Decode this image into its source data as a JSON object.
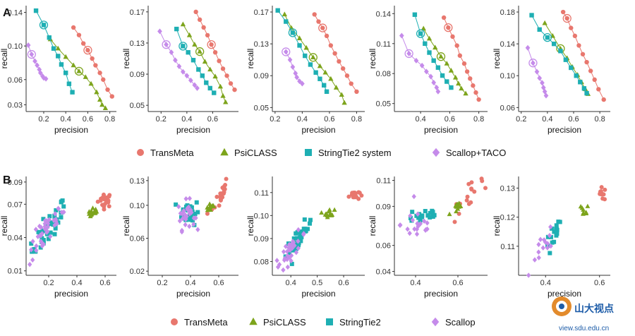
{
  "colors": {
    "TransMeta": "#E8776E",
    "PsiCLASS": "#7DA41C",
    "StringTie": "#1EAFB3",
    "Scallop": "#C58BEA"
  },
  "panels": {
    "A": "A",
    "B": "B"
  },
  "legendA": [
    "TransMeta",
    "PsiCLASS",
    "StringTie2 system",
    "Scallop+TACO"
  ],
  "legendB": [
    "TransMeta",
    "PsiCLASS",
    "StringTie2",
    "Scallop"
  ],
  "watermark": {
    "name": "山大视点",
    "url": "view.sdu.edu.cn"
  },
  "chart_data": [
    {
      "type": "line",
      "row": "A",
      "xlabel": "precision",
      "ylabel": "recall",
      "xticks": [
        "0.2",
        "0.4",
        "0.6",
        "0.8"
      ],
      "xtickvals": [
        0.2,
        0.4,
        0.6,
        0.8
      ],
      "yticks": [
        "0.03",
        "0.06",
        "0.10",
        "0.14"
      ],
      "ytickvals": [
        0.03,
        0.06,
        0.1,
        0.14
      ],
      "xlim": [
        0.04,
        0.86
      ],
      "ylim": [
        0.022,
        0.148
      ],
      "series": [
        {
          "name": "TransMeta",
          "x": [
            0.47,
            0.52,
            0.56,
            0.6,
            0.64,
            0.67,
            0.71,
            0.74,
            0.78,
            0.82
          ],
          "y": [
            0.122,
            0.113,
            0.103,
            0.095,
            0.085,
            0.077,
            0.068,
            0.06,
            0.048,
            0.04
          ],
          "circled": [
            3
          ]
        },
        {
          "name": "PsiCLASS",
          "x": [
            0.26,
            0.33,
            0.4,
            0.47,
            0.52,
            0.58,
            0.63,
            0.68,
            0.71,
            0.73,
            0.76
          ],
          "y": [
            0.108,
            0.097,
            0.087,
            0.077,
            0.07,
            0.063,
            0.055,
            0.045,
            0.036,
            0.03,
            0.026
          ],
          "circled": [
            4
          ]
        },
        {
          "name": "StringTie",
          "x": [
            0.13,
            0.2,
            0.25,
            0.29,
            0.33,
            0.36,
            0.4,
            0.43,
            0.46
          ],
          "y": [
            0.142,
            0.125,
            0.11,
            0.097,
            0.088,
            0.078,
            0.068,
            0.055,
            0.045
          ],
          "circled": [
            1
          ]
        },
        {
          "name": "Scallop",
          "x": [
            0.06,
            0.09,
            0.12,
            0.14,
            0.16,
            0.17,
            0.19,
            0.2,
            0.22
          ],
          "y": [
            0.101,
            0.09,
            0.082,
            0.077,
            0.072,
            0.068,
            0.064,
            0.062,
            0.061
          ],
          "circled": [
            1
          ]
        }
      ]
    },
    {
      "type": "line",
      "row": "A",
      "xlabel": "precision",
      "ylabel": "recall",
      "xticks": [
        "0.2",
        "0.4",
        "0.6"
      ],
      "xtickvals": [
        0.2,
        0.4,
        0.6
      ],
      "yticks": [
        "0.05",
        "0.09",
        "0.13",
        "0.17"
      ],
      "ytickvals": [
        0.05,
        0.09,
        0.13,
        0.17
      ],
      "xlim": [
        0.1,
        0.8
      ],
      "ylim": [
        0.042,
        0.178
      ],
      "series": [
        {
          "name": "TransMeta",
          "x": [
            0.47,
            0.5,
            0.53,
            0.56,
            0.59,
            0.62,
            0.65,
            0.68,
            0.71,
            0.74,
            0.77
          ],
          "y": [
            0.17,
            0.16,
            0.15,
            0.14,
            0.128,
            0.118,
            0.107,
            0.097,
            0.088,
            0.078,
            0.07
          ],
          "circled": [
            4
          ]
        },
        {
          "name": "PsiCLASS",
          "x": [
            0.37,
            0.42,
            0.46,
            0.5,
            0.54,
            0.58,
            0.62,
            0.66,
            0.68,
            0.7
          ],
          "y": [
            0.154,
            0.14,
            0.128,
            0.119,
            0.106,
            0.096,
            0.087,
            0.074,
            0.062,
            0.054
          ],
          "circled": [
            3
          ]
        },
        {
          "name": "StringTie",
          "x": [
            0.32,
            0.37,
            0.41,
            0.45,
            0.49,
            0.52,
            0.55,
            0.58,
            0.61
          ],
          "y": [
            0.148,
            0.126,
            0.118,
            0.108,
            0.096,
            0.088,
            0.079,
            0.072,
            0.066
          ],
          "circled": [
            1
          ]
        },
        {
          "name": "Scallop",
          "x": [
            0.19,
            0.24,
            0.28,
            0.31,
            0.34,
            0.37,
            0.4,
            0.43,
            0.46,
            0.48
          ],
          "y": [
            0.145,
            0.128,
            0.118,
            0.108,
            0.1,
            0.093,
            0.088,
            0.082,
            0.076,
            0.072
          ],
          "circled": [
            1
          ]
        }
      ]
    },
    {
      "type": "line",
      "row": "A",
      "xlabel": "precision",
      "ylabel": "recall",
      "xticks": [
        "0.2",
        "0.4",
        "0.6",
        "0.8"
      ],
      "xtickvals": [
        0.2,
        0.4,
        0.6,
        0.8
      ],
      "yticks": [
        "0.05",
        "0.09",
        "0.13",
        "0.17"
      ],
      "ytickvals": [
        0.05,
        0.09,
        0.13,
        0.17
      ],
      "xlim": [
        0.18,
        0.86
      ],
      "ylim": [
        0.045,
        0.178
      ],
      "series": [
        {
          "name": "TransMeta",
          "x": [
            0.49,
            0.52,
            0.55,
            0.58,
            0.61,
            0.64,
            0.67,
            0.7,
            0.73,
            0.76,
            0.8
          ],
          "y": [
            0.167,
            0.158,
            0.15,
            0.14,
            0.128,
            0.118,
            0.108,
            0.099,
            0.09,
            0.08,
            0.07
          ],
          "circled": [
            2
          ]
        },
        {
          "name": "PsiCLASS",
          "x": [
            0.27,
            0.32,
            0.38,
            0.43,
            0.48,
            0.53,
            0.57,
            0.61,
            0.65,
            0.69,
            0.71
          ],
          "y": [
            0.167,
            0.15,
            0.137,
            0.125,
            0.113,
            0.102,
            0.094,
            0.086,
            0.075,
            0.066,
            0.056
          ],
          "circled": [
            4
          ]
        },
        {
          "name": "StringTie",
          "x": [
            0.22,
            0.28,
            0.33,
            0.38,
            0.42,
            0.46,
            0.5,
            0.53,
            0.56,
            0.58
          ],
          "y": [
            0.172,
            0.158,
            0.144,
            0.128,
            0.115,
            0.104,
            0.094,
            0.086,
            0.078,
            0.07
          ],
          "circled": [
            2
          ]
        },
        {
          "name": "Scallop",
          "x": [
            0.28,
            0.31,
            0.33,
            0.35,
            0.36,
            0.38,
            0.4
          ],
          "y": [
            0.12,
            0.11,
            0.101,
            0.093,
            0.088,
            0.083,
            0.08
          ],
          "circled": [
            0
          ]
        }
      ]
    },
    {
      "type": "line",
      "row": "A",
      "xlabel": "precision",
      "ylabel": "recall",
      "xticks": [
        "0.4",
        "0.6",
        "0.8"
      ],
      "xtickvals": [
        0.4,
        0.6,
        0.8
      ],
      "yticks": [
        "0.05",
        "0.08",
        "0.11",
        "0.14"
      ],
      "ytickvals": [
        0.05,
        0.08,
        0.11,
        0.14
      ],
      "xlim": [
        0.22,
        0.86
      ],
      "ylim": [
        0.042,
        0.148
      ],
      "series": [
        {
          "name": "TransMeta",
          "x": [
            0.56,
            0.59,
            0.62,
            0.65,
            0.67,
            0.7,
            0.72,
            0.74,
            0.76,
            0.78,
            0.8
          ],
          "y": [
            0.136,
            0.126,
            0.117,
            0.108,
            0.098,
            0.09,
            0.082,
            0.075,
            0.068,
            0.061,
            0.054
          ],
          "circled": [
            1
          ]
        },
        {
          "name": "PsiCLASS",
          "x": [
            0.42,
            0.46,
            0.5,
            0.54,
            0.58,
            0.61,
            0.64,
            0.66,
            0.68,
            0.71
          ],
          "y": [
            0.125,
            0.115,
            0.106,
            0.097,
            0.09,
            0.083,
            0.076,
            0.07,
            0.065,
            0.06
          ],
          "circled": [
            3
          ]
        },
        {
          "name": "StringTie",
          "x": [
            0.36,
            0.4,
            0.43,
            0.46,
            0.49,
            0.52,
            0.55,
            0.58,
            0.61
          ],
          "y": [
            0.139,
            0.12,
            0.11,
            0.101,
            0.093,
            0.086,
            0.078,
            0.072,
            0.066
          ],
          "circled": [
            1
          ]
        },
        {
          "name": "Scallop",
          "x": [
            0.27,
            0.32,
            0.37,
            0.41,
            0.44,
            0.47,
            0.49,
            0.51,
            0.52
          ],
          "y": [
            0.118,
            0.1,
            0.093,
            0.088,
            0.082,
            0.077,
            0.071,
            0.066,
            0.062
          ],
          "circled": [
            1
          ]
        }
      ]
    },
    {
      "type": "line",
      "row": "A",
      "xlabel": "precision",
      "ylabel": "recall",
      "xticks": [
        "0.2",
        "0.4",
        "0.6",
        "0.8"
      ],
      "xtickvals": [
        0.2,
        0.4,
        0.6,
        0.8
      ],
      "yticks": [
        "0.06",
        "0.10",
        "0.14",
        "0.18"
      ],
      "ytickvals": [
        0.06,
        0.1,
        0.14,
        0.18
      ],
      "xlim": [
        0.18,
        0.88
      ],
      "ylim": [
        0.055,
        0.188
      ],
      "series": [
        {
          "name": "TransMeta",
          "x": [
            0.52,
            0.55,
            0.58,
            0.61,
            0.64,
            0.67,
            0.7,
            0.73,
            0.76,
            0.79,
            0.83
          ],
          "y": [
            0.18,
            0.172,
            0.16,
            0.15,
            0.138,
            0.127,
            0.117,
            0.106,
            0.095,
            0.083,
            0.07
          ],
          "circled": [
            1
          ]
        },
        {
          "name": "PsiCLASS",
          "x": [
            0.38,
            0.44,
            0.5,
            0.55,
            0.59,
            0.63,
            0.66,
            0.69,
            0.71
          ],
          "y": [
            0.166,
            0.15,
            0.134,
            0.122,
            0.111,
            0.101,
            0.092,
            0.083,
            0.077
          ],
          "circled": [
            2
          ]
        },
        {
          "name": "StringTie",
          "x": [
            0.28,
            0.34,
            0.4,
            0.45,
            0.5,
            0.54,
            0.58,
            0.62,
            0.65,
            0.68,
            0.7
          ],
          "y": [
            0.176,
            0.158,
            0.148,
            0.14,
            0.131,
            0.12,
            0.11,
            0.1,
            0.092,
            0.084,
            0.078
          ],
          "circled": [
            2
          ]
        },
        {
          "name": "Scallop",
          "x": [
            0.25,
            0.29,
            0.32,
            0.34,
            0.36,
            0.37,
            0.38,
            0.39
          ],
          "y": [
            0.135,
            0.116,
            0.105,
            0.097,
            0.091,
            0.085,
            0.08,
            0.075
          ],
          "circled": [
            1
          ]
        }
      ]
    },
    {
      "type": "scatter",
      "row": "B",
      "xlabel": "precision",
      "ylabel": "recall",
      "xticks": [
        "0.2",
        "0.4",
        "0.6"
      ],
      "xtickvals": [
        0.2,
        0.4,
        0.6
      ],
      "yticks": [
        "0.01",
        "0.04",
        "0.07",
        "0.09"
      ],
      "ytickvals": [
        0.01,
        0.04,
        0.07,
        0.09
      ],
      "xlim": [
        0.04,
        0.68
      ],
      "ylim": [
        0.006,
        0.095
      ],
      "clusters": [
        {
          "name": "TransMeta",
          "cx": 0.6,
          "cy": 0.074,
          "sx": 0.025,
          "sy": 0.006,
          "n": 22,
          "trend": 0
        },
        {
          "name": "PsiCLASS",
          "cx": 0.52,
          "cy": 0.062,
          "sx": 0.02,
          "sy": 0.004,
          "n": 14,
          "trend": 0
        },
        {
          "name": "StringTie",
          "cx": 0.2,
          "cy": 0.048,
          "sx": 0.06,
          "sy": 0.011,
          "n": 40,
          "trend": 0.17
        },
        {
          "name": "Scallop",
          "cx": 0.18,
          "cy": 0.045,
          "sx": 0.06,
          "sy": 0.012,
          "n": 40,
          "trend": 0.17
        }
      ]
    },
    {
      "type": "scatter",
      "row": "B",
      "xlabel": "precision",
      "ylabel": "recall",
      "xticks": [
        "0.2",
        "0.4",
        "0.6"
      ],
      "xtickvals": [
        0.2,
        0.4,
        0.6
      ],
      "yticks": [
        "0.02",
        "0.06",
        "0.10",
        "0.13"
      ],
      "ytickvals": [
        0.02,
        0.06,
        0.1,
        0.13
      ],
      "xlim": [
        0.1,
        0.74
      ],
      "ylim": [
        0.015,
        0.135
      ],
      "clusters": [
        {
          "name": "TransMeta",
          "cx": 0.6,
          "cy": 0.108,
          "sx": 0.035,
          "sy": 0.01,
          "n": 22,
          "trend": 0.3
        },
        {
          "name": "PsiCLASS",
          "cx": 0.54,
          "cy": 0.098,
          "sx": 0.02,
          "sy": 0.006,
          "n": 14,
          "trend": 0
        },
        {
          "name": "StringTie",
          "cx": 0.4,
          "cy": 0.092,
          "sx": 0.03,
          "sy": 0.014,
          "n": 30,
          "trend": 0
        },
        {
          "name": "Scallop",
          "cx": 0.37,
          "cy": 0.088,
          "sx": 0.03,
          "sy": 0.016,
          "n": 30,
          "trend": 0
        }
      ]
    },
    {
      "type": "scatter",
      "row": "B",
      "xlabel": "precision",
      "ylabel": "recall",
      "xticks": [
        "0.4",
        "0.5",
        "0.6"
      ],
      "xtickvals": [
        0.4,
        0.5,
        0.6
      ],
      "yticks": [
        "0.08",
        "0.09",
        "0.10",
        "0.11"
      ],
      "ytickvals": [
        0.08,
        0.09,
        0.1,
        0.11
      ],
      "xlim": [
        0.33,
        0.68
      ],
      "ylim": [
        0.074,
        0.117
      ],
      "clusters": [
        {
          "name": "TransMeta",
          "cx": 0.64,
          "cy": 0.109,
          "sx": 0.01,
          "sy": 0.002,
          "n": 20,
          "trend": 0
        },
        {
          "name": "PsiCLASS",
          "cx": 0.545,
          "cy": 0.101,
          "sx": 0.01,
          "sy": 0.0015,
          "n": 14,
          "trend": 0
        },
        {
          "name": "StringTie",
          "cx": 0.43,
          "cy": 0.09,
          "sx": 0.025,
          "sy": 0.004,
          "n": 30,
          "trend": 0.14
        },
        {
          "name": "Scallop",
          "cx": 0.4,
          "cy": 0.085,
          "sx": 0.03,
          "sy": 0.004,
          "n": 30,
          "trend": 0.14
        }
      ]
    },
    {
      "type": "scatter",
      "row": "B",
      "xlabel": "precision",
      "ylabel": "recall",
      "xticks": [
        "0.4",
        "0.6"
      ],
      "xtickvals": [
        0.4,
        0.6
      ],
      "yticks": [
        "0.04",
        "0.06",
        "0.09",
        "0.11"
      ],
      "ytickvals": [
        0.04,
        0.06,
        0.09,
        0.11
      ],
      "xlim": [
        0.3,
        0.74
      ],
      "ylim": [
        0.037,
        0.113
      ],
      "clusters": [
        {
          "name": "TransMeta",
          "cx": 0.64,
          "cy": 0.096,
          "sx": 0.04,
          "sy": 0.007,
          "n": 16,
          "trend": 0.2
        },
        {
          "name": "PsiCLASS",
          "cx": 0.6,
          "cy": 0.088,
          "sx": 0.02,
          "sy": 0.004,
          "n": 10,
          "trend": 0
        },
        {
          "name": "StringTie",
          "cx": 0.44,
          "cy": 0.083,
          "sx": 0.04,
          "sy": 0.006,
          "n": 20,
          "trend": 0
        },
        {
          "name": "Scallop",
          "cx": 0.41,
          "cy": 0.076,
          "sx": 0.04,
          "sy": 0.012,
          "n": 20,
          "trend": 0
        }
      ]
    },
    {
      "type": "scatter",
      "row": "B",
      "xlabel": "precision",
      "ylabel": "recall",
      "xticks": [
        "0.4",
        "0.6"
      ],
      "xtickvals": [
        0.4,
        0.6
      ],
      "yticks": [
        "0.11",
        "0.12",
        "0.13"
      ],
      "ytickvals": [
        0.11,
        0.12,
        0.13
      ],
      "xlim": [
        0.3,
        0.64
      ],
      "ylim": [
        0.1,
        0.134
      ],
      "clusters": [
        {
          "name": "TransMeta",
          "cx": 0.61,
          "cy": 0.128,
          "sx": 0.01,
          "sy": 0.002,
          "n": 12,
          "trend": 0
        },
        {
          "name": "PsiCLASS",
          "cx": 0.54,
          "cy": 0.122,
          "sx": 0.01,
          "sy": 0.002,
          "n": 8,
          "trend": 0
        },
        {
          "name": "StringTie",
          "cx": 0.43,
          "cy": 0.113,
          "sx": 0.015,
          "sy": 0.004,
          "n": 16,
          "trend": 0.15
        },
        {
          "name": "Scallop",
          "cx": 0.39,
          "cy": 0.109,
          "sx": 0.02,
          "sy": 0.004,
          "n": 14,
          "trend": 0.15
        }
      ]
    }
  ]
}
